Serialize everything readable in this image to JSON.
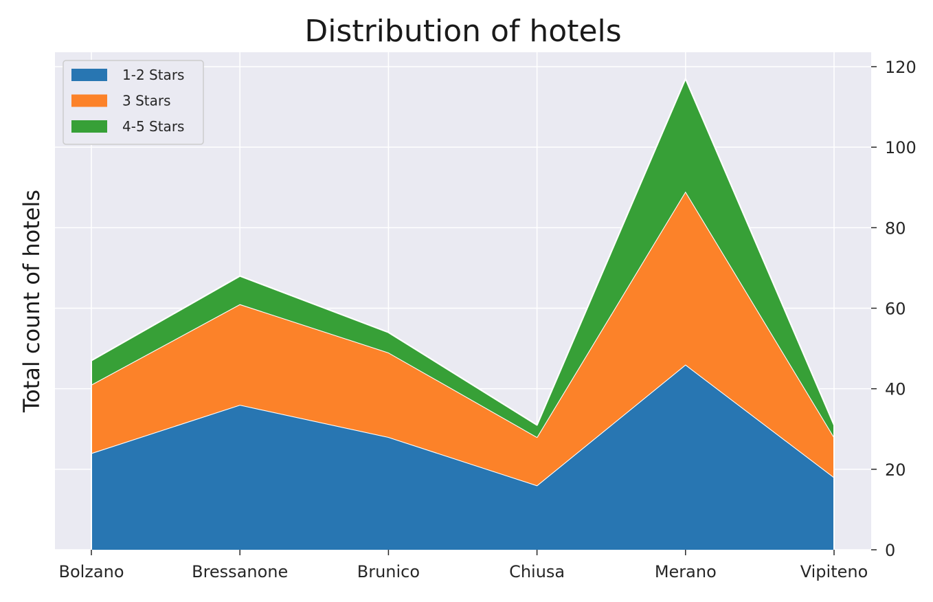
{
  "chart_data": {
    "type": "area",
    "stacked": true,
    "title": "Distribution of hotels",
    "xlabel": "",
    "ylabel": "Total count of hotels",
    "categories": [
      "Bolzano",
      "Bressanone",
      "Brunico",
      "Chiusa",
      "Merano",
      "Vipiteno"
    ],
    "series": [
      {
        "name": "1-2 Stars",
        "color": "#2876b2",
        "values": [
          24,
          36,
          28,
          16,
          46,
          18
        ]
      },
      {
        "name": "3 Stars",
        "color": "#fc8229",
        "values": [
          17,
          25,
          21,
          12,
          43,
          10
        ]
      },
      {
        "name": "4-5 Stars",
        "color": "#37a037",
        "values": [
          6,
          7,
          5,
          3,
          28,
          3
        ]
      }
    ],
    "ylim": [
      0,
      120
    ],
    "yticks": [
      0,
      20,
      40,
      60,
      80,
      100,
      120
    ],
    "yaxis_side": "right",
    "grid": true,
    "legend_position": "top-left",
    "background": "#eaeaf2"
  }
}
